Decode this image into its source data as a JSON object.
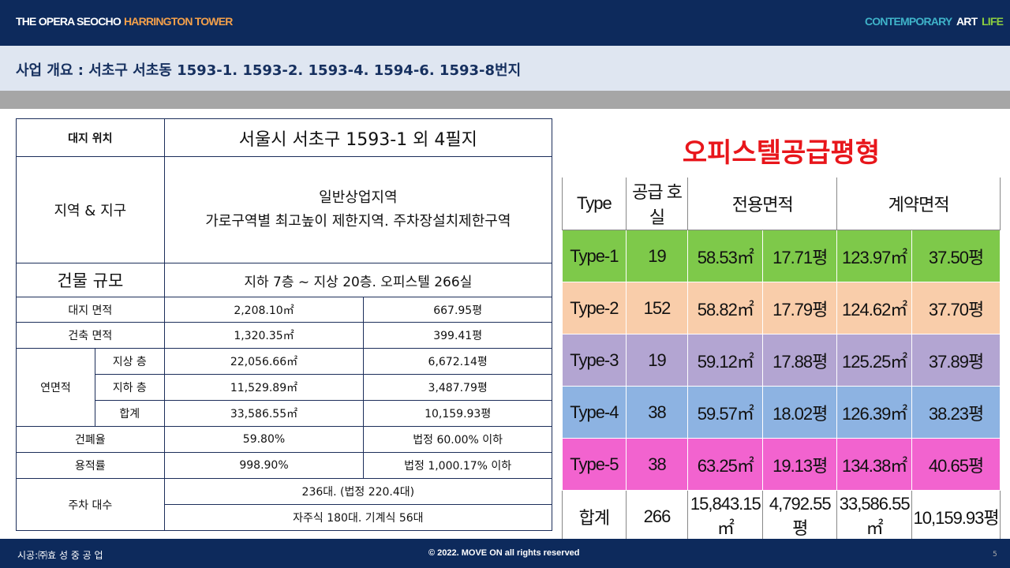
{
  "header": {
    "brand_1": "THE OPERA SEOCHO",
    "brand_2": "HARRINGTON TOWER",
    "tag_1": "CONTEMPORARY",
    "tag_2": "ART",
    "tag_3": "LIFE"
  },
  "title": "사업 개요 : 서초구 서초동 1593-1. 1593-2. 1593-4. 1594-6. 1593-8번지",
  "info_table": {
    "location": {
      "label": "대지 위치",
      "value": "서울시 서초구 1593-1 외 4필지"
    },
    "zone": {
      "label": "지역 & 지구",
      "line_1": "일반상업지역",
      "line_2": "가로구역별 최고높이 제한지역. 주차장설치제한구역"
    },
    "scale": {
      "label": "건물 규모",
      "value": "지하 7층 ~ 지상 20층. 오피스텔 266실"
    },
    "site_area": {
      "label": "대지 면적",
      "m2": "2,208.10㎡",
      "pyeong": "667.95평"
    },
    "building_area": {
      "label": "건축 면적",
      "m2": "1,320.35㎡",
      "pyeong": "399.41평"
    },
    "floor_area": {
      "label": "연면적",
      "rows": [
        {
          "label": "지상 층",
          "m2": "22,056.66㎡",
          "pyeong": "6,672.14평"
        },
        {
          "label": "지하 층",
          "m2": "11,529.89㎡",
          "pyeong": "3,487.79평"
        },
        {
          "label": "합계",
          "m2": "33,586.55㎡",
          "pyeong": "10,159.93평"
        }
      ]
    },
    "coverage": {
      "label": "건폐율",
      "value": "59.80%",
      "legal": "법정 60.00% 이하"
    },
    "far": {
      "label": "용적률",
      "value": "998.90%",
      "legal": "법정 1,000.17% 이하"
    },
    "parking": {
      "label": "주차 대수",
      "line_1": "236대. (법정 220.4대)",
      "line_2": "자주식 180대. 기계식 56대"
    }
  },
  "supply_table": {
    "title": "오피스텔공급평형",
    "headers": [
      "Type",
      "공급 호실",
      "전용면적",
      "계약면적"
    ],
    "rows": [
      [
        "Type-1",
        "19",
        "58.53㎡",
        "17.71평",
        "123.97㎡",
        "37.50평"
      ],
      [
        "Type-2",
        "152",
        "58.82㎡",
        "17.79평",
        "124.62㎡",
        "37.70평"
      ],
      [
        "Type-3",
        "19",
        "59.12㎡",
        "17.88평",
        "125.25㎡",
        "37.89평"
      ],
      [
        "Type-4",
        "38",
        "59.57㎡",
        "18.02평",
        "126.39㎡",
        "38.23평"
      ],
      [
        "Type-5",
        "38",
        "63.25㎡",
        "19.13평",
        "134.38㎡",
        "40.65평"
      ],
      [
        "합계",
        "266",
        "15,843.15㎡",
        "4,792.55평",
        "33,586.55㎡",
        "10,159.93평"
      ]
    ],
    "row_colors": [
      "#7ec94a",
      "#f9cdaa",
      "#b3a5d2",
      "#8db3e2",
      "#f263cf",
      "#ffffff"
    ]
  },
  "footer": {
    "builder": "시공:㈜효 성 중 공 업",
    "copyright": "© 2022. MOVE ON all rights reserved",
    "page": "5"
  }
}
